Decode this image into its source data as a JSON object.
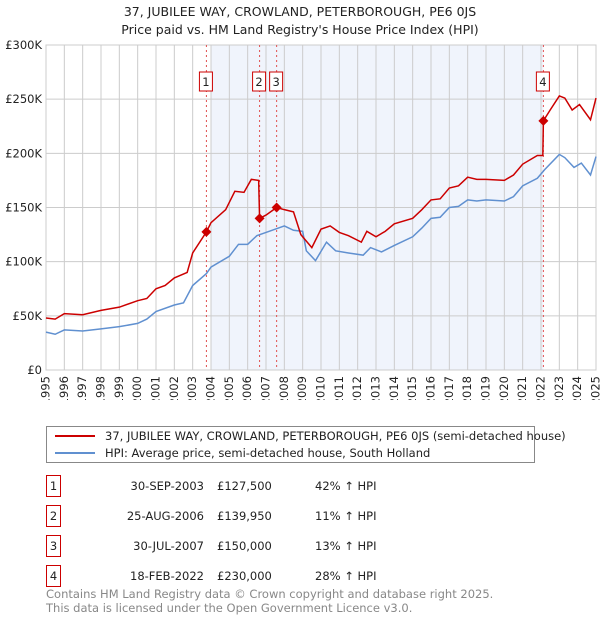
{
  "chart_data": {
    "type": "line",
    "title": "37, JUBILEE WAY, CROWLAND, PETERBOROUGH, PE6 0JS",
    "subtitle": "Price paid vs. HM Land Registry's House Price Index (HPI)",
    "xlim": [
      1995,
      2025
    ],
    "ylim": [
      0,
      300000
    ],
    "xticks": [
      "1995",
      "1996",
      "1997",
      "1998",
      "1999",
      "2000",
      "2001",
      "2002",
      "2003",
      "2004",
      "2005",
      "2006",
      "2007",
      "2008",
      "2009",
      "2010",
      "2011",
      "2012",
      "2013",
      "2014",
      "2015",
      "2016",
      "2017",
      "2018",
      "2019",
      "2020",
      "2021",
      "2022",
      "2023",
      "2024",
      "2025"
    ],
    "yticks": [
      {
        "v": 0,
        "label": "£0"
      },
      {
        "v": 50000,
        "label": "£50K"
      },
      {
        "v": 100000,
        "label": "£100K"
      },
      {
        "v": 150000,
        "label": "£150K"
      },
      {
        "v": 200000,
        "label": "£200K"
      },
      {
        "v": 250000,
        "label": "£250K"
      },
      {
        "v": 300000,
        "label": "£300K"
      }
    ],
    "grid": true,
    "shaded_range": [
      2004.0,
      2022.13
    ],
    "series": [
      {
        "name": "37, JUBILEE WAY, CROWLAND, PETERBOROUGH, PE6 0JS (semi-detached house)",
        "color": "#cc0000",
        "x": [
          1995,
          1995.5,
          1996,
          1997,
          1998,
          1999,
          2000,
          2000.5,
          2001,
          2001.5,
          2002,
          2002.7,
          2003,
          2003.75,
          2004,
          2004.8,
          2005.3,
          2005.8,
          2006.2,
          2006.6,
          2006.65,
          2007,
          2007.58,
          2008,
          2008.5,
          2008.9,
          2009.5,
          2010,
          2010.5,
          2011,
          2011.5,
          2012.2,
          2012.5,
          2013,
          2013.5,
          2014,
          2015,
          2015.5,
          2016,
          2016.5,
          2017,
          2017.5,
          2018,
          2018.5,
          2019,
          2020,
          2020.5,
          2021,
          2021.8,
          2022.1,
          2022.13,
          2022.5,
          2023,
          2023.3,
          2023.7,
          2024.1,
          2024.7,
          2025
        ],
        "y": [
          48000,
          47000,
          52000,
          51000,
          55000,
          58000,
          64000,
          66000,
          75000,
          78000,
          85000,
          90000,
          108000,
          127500,
          136000,
          148000,
          165000,
          164000,
          176000,
          175000,
          139950,
          143000,
          150000,
          148000,
          146000,
          125000,
          113000,
          130000,
          133000,
          127000,
          124000,
          118000,
          128000,
          123000,
          128000,
          135000,
          140000,
          148000,
          157000,
          158000,
          168000,
          170000,
          178000,
          176000,
          176000,
          175000,
          180000,
          190000,
          198000,
          198000,
          230000,
          240000,
          253000,
          251000,
          240000,
          245000,
          231000,
          251000
        ]
      },
      {
        "name": "HPI: Average price, semi-detached house, South Holland",
        "color": "#6090d0",
        "x": [
          1995,
          1995.5,
          1996,
          1997,
          1998,
          1999,
          2000,
          2000.5,
          2001,
          2002,
          2002.5,
          2003,
          2003.75,
          2004,
          2005,
          2005.5,
          2006,
          2006.5,
          2007,
          2007.5,
          2008,
          2008.5,
          2009,
          2009.2,
          2009.7,
          2010.3,
          2010.8,
          2011.5,
          2012.3,
          2012.7,
          2013.3,
          2014,
          2015,
          2015.5,
          2016,
          2016.5,
          2017,
          2017.5,
          2018,
          2018.5,
          2019,
          2020,
          2020.5,
          2021,
          2021.8,
          2022.2,
          2023,
          2023.3,
          2023.8,
          2024.2,
          2024.7,
          2025
        ],
        "y": [
          35000,
          33000,
          37000,
          36000,
          38000,
          40000,
          43000,
          47000,
          54000,
          60000,
          62000,
          78000,
          89000,
          95000,
          105000,
          116000,
          116000,
          124000,
          127000,
          130000,
          133000,
          129000,
          128000,
          110000,
          101000,
          118000,
          110000,
          108000,
          106000,
          113000,
          109000,
          115000,
          123000,
          131000,
          140000,
          141000,
          150000,
          151000,
          157000,
          156000,
          157000,
          156000,
          160000,
          170000,
          177000,
          185000,
          199000,
          196000,
          187000,
          191000,
          180000,
          197000
        ]
      }
    ],
    "sales": [
      {
        "id": "1",
        "date": "30-SEP-2003",
        "x": 2003.75,
        "price": "£127,500",
        "value": 127500,
        "hpi": "42% ↑ HPI"
      },
      {
        "id": "2",
        "date": "25-AUG-2006",
        "x": 2006.65,
        "price": "£139,950",
        "value": 139950,
        "hpi": "11% ↑ HPI"
      },
      {
        "id": "3",
        "date": "30-JUL-2007",
        "x": 2007.58,
        "price": "£150,000",
        "value": 150000,
        "hpi": "13% ↑ HPI"
      },
      {
        "id": "4",
        "date": "18-FEB-2022",
        "x": 2022.13,
        "price": "£230,000",
        "value": 230000,
        "hpi": "28% ↑ HPI"
      }
    ]
  },
  "footer": [
    "Contains HM Land Registry data © Crown copyright and database right 2025.",
    "This data is licensed under the Open Government Licence v3.0."
  ]
}
